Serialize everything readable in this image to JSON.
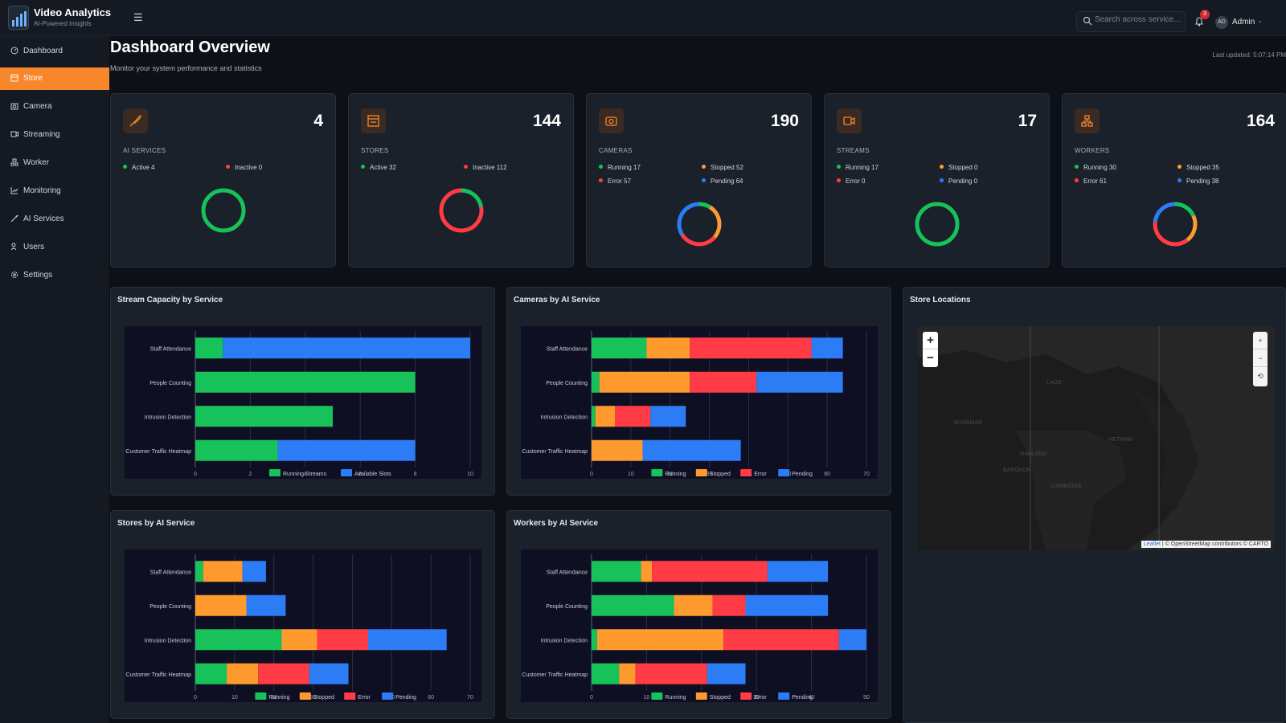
{
  "app": {
    "title": "Video Analytics",
    "tagline": "AI-Powered Insights",
    "logo_icon": "chart-bars-icon"
  },
  "header": {
    "search_placeholder": "Search across service...",
    "notifications": "3",
    "user_initials": "AD",
    "user_name": "Admin"
  },
  "sidebar": {
    "items": [
      {
        "label": "Dashboard",
        "icon": "dashboard-icon"
      },
      {
        "label": "Store",
        "icon": "store-icon",
        "active": true
      },
      {
        "label": "Camera",
        "icon": "camera-icon"
      },
      {
        "label": "Streaming",
        "icon": "video-icon"
      },
      {
        "label": "Worker",
        "icon": "worker-icon"
      },
      {
        "label": "Monitoring",
        "icon": "chart-line-icon"
      },
      {
        "label": "AI Services",
        "icon": "rocket-icon"
      },
      {
        "label": "Users",
        "icon": "users-icon"
      },
      {
        "label": "Settings",
        "icon": "gear-icon"
      }
    ]
  },
  "page": {
    "title": "Dashboard Overview",
    "subtitle": "Monitor your system performance and statistics",
    "last_updated": "Last updated: 5:07:14 PM"
  },
  "colors": {
    "running": "#17c25a",
    "stopped": "#ff9a2e",
    "error": "#ff3b45",
    "pending": "#2c7cf6",
    "accent": "#f7872a"
  },
  "cards": [
    {
      "label": "AI SERVICES",
      "value": "4",
      "icon": "rocket-icon",
      "stats": [
        {
          "text": "Active 4",
          "color": "#17c25a"
        },
        {
          "text": "Inactive 0",
          "color": "#ff3b45"
        }
      ],
      "donut": [
        4,
        0,
        0,
        0
      ]
    },
    {
      "label": "STORES",
      "value": "144",
      "icon": "store-icon",
      "stats": [
        {
          "text": "Active 32",
          "color": "#17c25a"
        },
        {
          "text": "Inactive 112",
          "color": "#ff3b45"
        }
      ],
      "donut": [
        32,
        0,
        112,
        0
      ]
    },
    {
      "label": "CAMERAS",
      "value": "190",
      "icon": "camera-icon",
      "stats": [
        {
          "text": "Running 17",
          "color": "#17c25a"
        },
        {
          "text": "Stopped 52",
          "color": "#ff9a2e"
        },
        {
          "text": "Error 57",
          "color": "#ff3b45"
        },
        {
          "text": "Pending 64",
          "color": "#2c7cf6"
        }
      ],
      "donut": [
        17,
        52,
        57,
        64
      ]
    },
    {
      "label": "STREAMS",
      "value": "17",
      "icon": "video-icon",
      "stats": [
        {
          "text": "Running 17",
          "color": "#17c25a"
        },
        {
          "text": "Stopped 0",
          "color": "#ff9a2e"
        },
        {
          "text": "Error 0",
          "color": "#ff3b45"
        },
        {
          "text": "Pending 0",
          "color": "#2c7cf6"
        }
      ],
      "donut": [
        17,
        0,
        0,
        0
      ]
    },
    {
      "label": "WORKERS",
      "value": "164",
      "icon": "worker-icon",
      "stats": [
        {
          "text": "Running 30",
          "color": "#17c25a"
        },
        {
          "text": "Stopped 35",
          "color": "#ff9a2e"
        },
        {
          "text": "Error 61",
          "color": "#ff3b45"
        },
        {
          "text": "Pending 38",
          "color": "#2c7cf6"
        }
      ],
      "donut": [
        30,
        35,
        61,
        38
      ]
    }
  ],
  "chart_data": [
    {
      "type": "bar",
      "title": "Stream Capacity by Service",
      "categories": [
        "Staff Attendance",
        "People Counting",
        "Intrusion Detection",
        "Customer Traffic Heatmap"
      ],
      "xlim": [
        0,
        10
      ],
      "xticks": [
        0,
        2,
        4,
        6,
        8,
        10
      ],
      "stacked": true,
      "horizontal": true,
      "series": [
        {
          "name": "Running Streams",
          "color": "#17c25a",
          "values": [
            1,
            8,
            5,
            3
          ]
        },
        {
          "name": "Available Slots",
          "color": "#2c7cf6",
          "values": [
            9,
            0,
            0,
            5
          ]
        }
      ]
    },
    {
      "type": "bar",
      "title": "Cameras by AI Service",
      "categories": [
        "Staff Attendance",
        "People Counting",
        "Intrusion Detection",
        "Customer Traffic Heatmap"
      ],
      "xlim": [
        0,
        70
      ],
      "xticks": [
        0,
        10,
        20,
        30,
        40,
        50,
        60,
        70
      ],
      "stacked": true,
      "horizontal": true,
      "series": [
        {
          "name": "Running",
          "color": "#17c25a",
          "values": [
            14,
            2,
            1,
            0
          ]
        },
        {
          "name": "Stopped",
          "color": "#ff9a2e",
          "values": [
            11,
            23,
            5,
            13
          ]
        },
        {
          "name": "Error",
          "color": "#ff3b45",
          "values": [
            31,
            17,
            9,
            0
          ]
        },
        {
          "name": "Pending",
          "color": "#2c7cf6",
          "values": [
            8,
            22,
            9,
            25
          ]
        }
      ]
    },
    {
      "type": "bar",
      "title": "Stores by AI Service",
      "categories": [
        "Staff Attendance",
        "People Counting",
        "Intrusion Detection",
        "Customer Traffic Heatmap"
      ],
      "xlim": [
        0,
        70
      ],
      "xticks": [
        0,
        10,
        20,
        30,
        40,
        50,
        60,
        70
      ],
      "stacked": true,
      "horizontal": true,
      "series": [
        {
          "name": "Running",
          "color": "#17c25a",
          "values": [
            2,
            0,
            22,
            8
          ]
        },
        {
          "name": "Stopped",
          "color": "#ff9a2e",
          "values": [
            10,
            13,
            9,
            8
          ]
        },
        {
          "name": "Error",
          "color": "#ff3b45",
          "values": [
            0,
            0,
            13,
            13
          ]
        },
        {
          "name": "Pending",
          "color": "#2c7cf6",
          "values": [
            6,
            10,
            20,
            10
          ]
        }
      ]
    },
    {
      "type": "bar",
      "title": "Workers by AI Service",
      "categories": [
        "Staff Attendance",
        "People Counting",
        "Intrusion Detection",
        "Customer Traffic Heatmap"
      ],
      "xlim": [
        0,
        50
      ],
      "xticks": [
        0,
        10,
        20,
        30,
        40,
        50
      ],
      "stacked": true,
      "horizontal": true,
      "series": [
        {
          "name": "Running",
          "color": "#17c25a",
          "values": [
            9,
            15,
            1,
            5
          ]
        },
        {
          "name": "Stopped",
          "color": "#ff9a2e",
          "values": [
            2,
            7,
            23,
            3
          ]
        },
        {
          "name": "Error",
          "color": "#ff3b45",
          "values": [
            21,
            6,
            21,
            13
          ]
        },
        {
          "name": "Pending",
          "color": "#2c7cf6",
          "values": [
            11,
            15,
            5,
            7
          ]
        }
      ]
    }
  ],
  "map": {
    "title": "Store Locations",
    "labels": [
      "MYANMAR",
      "LAOS",
      "THAILAND",
      "BANGKOK",
      "CAMBODIA",
      "VIETNAM"
    ],
    "attribution_link": "Leaflet",
    "attribution_text": "| © OpenStreetMap contributors © CARTO"
  }
}
